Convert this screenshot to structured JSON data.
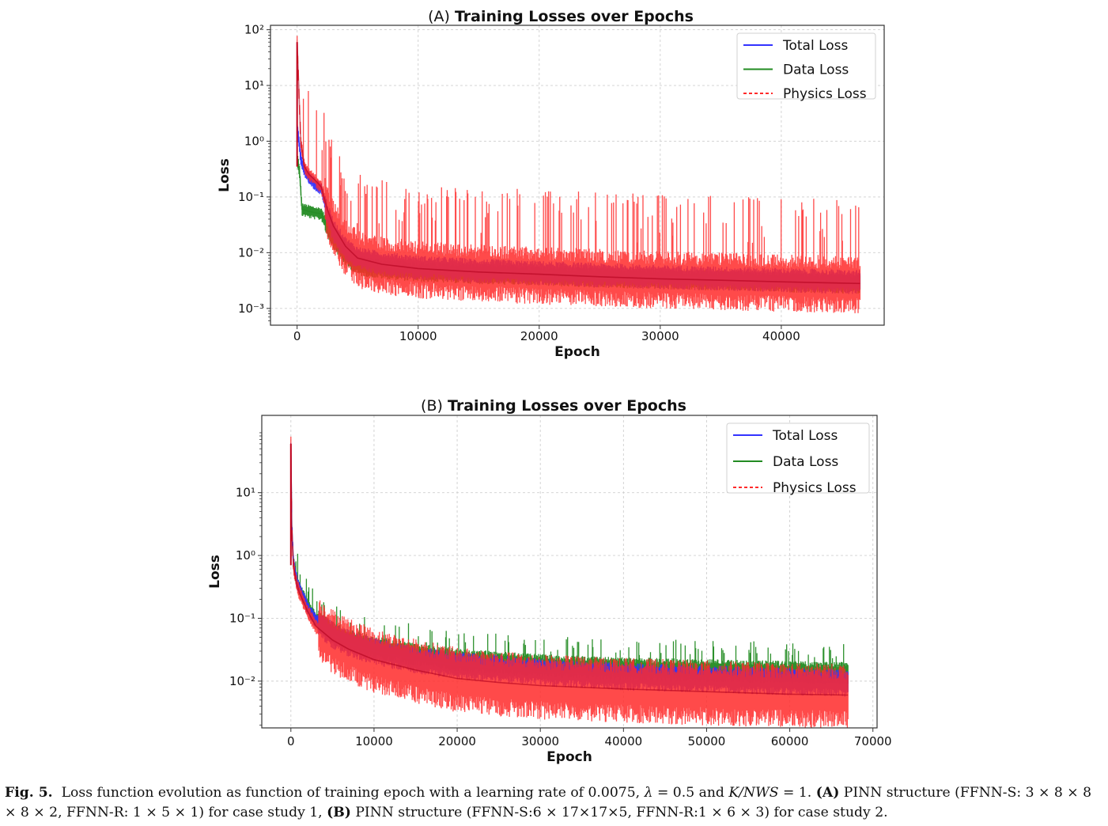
{
  "chart_data": [
    {
      "type": "line",
      "panel": "(A)",
      "title": "Training Losses over Epochs",
      "xlabel": "Epoch",
      "ylabel": "Loss",
      "yscale": "log",
      "xlim": [
        -2200,
        48500
      ],
      "ylim": [
        0.0005,
        120
      ],
      "xticks": [
        0,
        10000,
        20000,
        30000,
        40000
      ],
      "xtick_labels": [
        "0",
        "10000",
        "20000",
        "30000",
        "40000"
      ],
      "yticks": [
        -3,
        -2,
        -1,
        0,
        1,
        2
      ],
      "grid": true,
      "legend_position": "top-right",
      "series": [
        {
          "name": "Total Loss",
          "color": "#3333ff",
          "style": "solid",
          "x": [
            0,
            300,
            600,
            1000,
            1500,
            2000,
            2500,
            3000,
            4000,
            5000,
            7000,
            10000,
            15000,
            20000,
            25000,
            30000,
            35000,
            40000,
            46500
          ],
          "y": [
            2.0,
            0.5,
            0.3,
            0.22,
            0.17,
            0.14,
            0.05,
            0.025,
            0.012,
            0.008,
            0.0065,
            0.0055,
            0.0048,
            0.0044,
            0.004,
            0.0037,
            0.0035,
            0.0033,
            0.003
          ]
        },
        {
          "name": "Data Loss",
          "color": "#228b22",
          "style": "solid",
          "x": [
            0,
            200,
            400,
            1000,
            1500,
            2000,
            2500,
            3000,
            4000,
            5000,
            7000,
            10000,
            15000,
            20000,
            25000,
            30000,
            35000,
            40000,
            46500
          ],
          "y": [
            0.5,
            0.3,
            0.06,
            0.055,
            0.052,
            0.05,
            0.03,
            0.018,
            0.009,
            0.006,
            0.0052,
            0.0046,
            0.0042,
            0.0039,
            0.0036,
            0.0034,
            0.0032,
            0.003,
            0.0028
          ]
        },
        {
          "name": "Physics Loss",
          "color": "#ff2a2a",
          "style": "dashed",
          "x": [
            0,
            300,
            600,
            1000,
            1500,
            2000,
            2500,
            3000,
            4000,
            5000,
            7000,
            10000,
            15000,
            20000,
            25000,
            30000,
            35000,
            40000,
            46500
          ],
          "y": [
            60,
            1.0,
            0.35,
            0.25,
            0.2,
            0.15,
            0.06,
            0.03,
            0.013,
            0.008,
            0.0062,
            0.0052,
            0.0045,
            0.0041,
            0.0037,
            0.0034,
            0.0032,
            0.003,
            0.0028
          ]
        }
      ]
    },
    {
      "type": "line",
      "panel": "(B)",
      "title": "Training Losses over Epochs",
      "xlabel": "Epoch",
      "ylabel": "Loss",
      "yscale": "log",
      "xlim": [
        -3500,
        70500
      ],
      "ylim": [
        0.0018,
        170
      ],
      "xticks": [
        0,
        10000,
        20000,
        30000,
        40000,
        50000,
        60000,
        70000
      ],
      "xtick_labels": [
        "0",
        "10000",
        "20000",
        "30000",
        "40000",
        "50000",
        "60000",
        "70000"
      ],
      "yticks": [
        -2,
        -1,
        0,
        1
      ],
      "grid": true,
      "legend_position": "top-right",
      "series": [
        {
          "name": "Total Loss",
          "color": "#3333ff",
          "style": "solid",
          "x": [
            0,
            100,
            300,
            600,
            1000,
            2000,
            3000,
            5000,
            7000,
            10000,
            15000,
            20000,
            25000,
            30000,
            40000,
            50000,
            60000,
            67000
          ],
          "y": [
            50,
            3.0,
            0.8,
            0.45,
            0.3,
            0.15,
            0.09,
            0.055,
            0.04,
            0.03,
            0.022,
            0.018,
            0.016,
            0.014,
            0.012,
            0.011,
            0.01,
            0.0095
          ]
        },
        {
          "name": "Data Loss",
          "color": "#228b22",
          "style": "solid",
          "x": [
            0,
            100,
            300,
            600,
            1000,
            2000,
            3000,
            5000,
            7000,
            10000,
            15000,
            20000,
            25000,
            30000,
            40000,
            50000,
            60000,
            67000
          ],
          "y": [
            40,
            3.0,
            0.8,
            0.45,
            0.3,
            0.16,
            0.1,
            0.06,
            0.045,
            0.035,
            0.027,
            0.022,
            0.02,
            0.018,
            0.016,
            0.015,
            0.014,
            0.0135
          ]
        },
        {
          "name": "Physics Loss",
          "color": "#ff2a2a",
          "style": "dashed",
          "x": [
            0,
            100,
            300,
            600,
            1000,
            2000,
            3000,
            5000,
            7000,
            10000,
            15000,
            20000,
            25000,
            30000,
            40000,
            50000,
            60000,
            67000
          ],
          "y": [
            60,
            3.0,
            0.7,
            0.4,
            0.26,
            0.13,
            0.075,
            0.045,
            0.032,
            0.022,
            0.015,
            0.011,
            0.0095,
            0.0085,
            0.0075,
            0.0068,
            0.0062,
            0.006
          ]
        }
      ]
    }
  ],
  "caption": {
    "label": "Fig. 5.",
    "text_1": "Loss function evolution as function of training epoch with a learning rate of 0.0075, ",
    "lambda_sym": "λ",
    "text_2": " = 0.5 and ",
    "ratio_sym": "K/NWS",
    "text_3": " = 1. ",
    "label_a": "(A)",
    "text_a": " PINN structure (FFNN-S: 3 × 8 × 8 × 8 × 2, FFNN-R: 1 × 5 × 1) for case study 1, ",
    "label_b": "(B)",
    "text_b": " PINN structure (FFNN-S:6 × 17×17×5, FFNN-R:1 × 6 × 3) for case study 2."
  }
}
